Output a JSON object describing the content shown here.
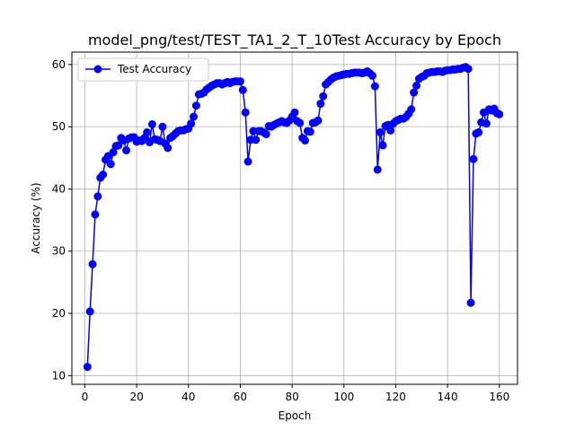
{
  "chart_data": {
    "type": "line",
    "title": "model_png/test/TEST_TA1_2_T_10Test Accuracy by Epoch",
    "xlabel": "Epoch",
    "ylabel": "Accuracy (%)",
    "xlim": [
      -5,
      167
    ],
    "ylim": [
      8.6,
      62
    ],
    "xticks": [
      0,
      20,
      40,
      60,
      80,
      100,
      120,
      140,
      160
    ],
    "yticks": [
      10,
      20,
      30,
      40,
      50,
      60
    ],
    "grid": true,
    "legend_position": "top-left",
    "colors": {
      "series": "#0000ff"
    },
    "series": [
      {
        "name": "Test Accuracy",
        "x": [
          1,
          2,
          3,
          4,
          5,
          6,
          7,
          8,
          9,
          10,
          11,
          12,
          13,
          14,
          15,
          16,
          17,
          18,
          19,
          20,
          21,
          22,
          23,
          24,
          25,
          26,
          27,
          28,
          29,
          30,
          31,
          32,
          33,
          34,
          35,
          36,
          37,
          38,
          39,
          40,
          41,
          42,
          43,
          44,
          45,
          46,
          47,
          48,
          49,
          50,
          51,
          52,
          53,
          54,
          55,
          56,
          57,
          58,
          59,
          60,
          61,
          62,
          63,
          64,
          65,
          66,
          67,
          68,
          69,
          70,
          71,
          72,
          73,
          74,
          75,
          76,
          77,
          78,
          79,
          80,
          81,
          82,
          83,
          84,
          85,
          86,
          87,
          88,
          89,
          90,
          91,
          92,
          93,
          94,
          95,
          96,
          97,
          98,
          99,
          100,
          101,
          102,
          103,
          104,
          105,
          106,
          107,
          108,
          109,
          110,
          111,
          112,
          113,
          114,
          115,
          116,
          117,
          118,
          119,
          120,
          121,
          122,
          123,
          124,
          125,
          126,
          127,
          128,
          129,
          130,
          131,
          132,
          133,
          134,
          135,
          136,
          137,
          138,
          139,
          140,
          141,
          142,
          143,
          144,
          145,
          146,
          147,
          148,
          149,
          150,
          151,
          152,
          153,
          154,
          155,
          156,
          157,
          158,
          159,
          160
        ],
        "values": [
          11.4,
          20.3,
          27.9,
          35.9,
          38.8,
          41.8,
          42.3,
          44.7,
          45.3,
          44.0,
          45.9,
          46.9,
          47.0,
          48.2,
          47.8,
          46.2,
          48.1,
          48.3,
          48.3,
          47.6,
          47.8,
          47.7,
          48.2,
          49.1,
          47.5,
          50.4,
          48.0,
          47.9,
          47.7,
          50.0,
          47.3,
          46.6,
          48.2,
          48.5,
          48.9,
          49.3,
          49.4,
          49.4,
          49.6,
          49.7,
          50.5,
          51.6,
          53.4,
          55.2,
          55.3,
          55.5,
          56.0,
          56.3,
          56.6,
          56.8,
          57.0,
          57.0,
          56.8,
          57.0,
          57.2,
          57.0,
          57.2,
          57.3,
          57.3,
          57.3,
          55.9,
          52.3,
          44.4,
          47.9,
          49.3,
          47.9,
          49.3,
          49.3,
          49.1,
          48.8,
          50.1,
          50.0,
          50.3,
          50.5,
          50.7,
          50.9,
          50.7,
          50.6,
          51.0,
          51.6,
          52.3,
          50.9,
          50.6,
          48.2,
          47.8,
          49.3,
          49.2,
          50.6,
          50.7,
          51.0,
          53.7,
          54.9,
          56.8,
          57.2,
          57.6,
          57.9,
          58.1,
          58.2,
          58.3,
          58.4,
          58.5,
          58.5,
          58.6,
          58.7,
          58.7,
          58.7,
          58.6,
          58.7,
          58.9,
          58.6,
          58.2,
          56.5,
          43.1,
          49.1,
          47.0,
          50.1,
          50.3,
          49.4,
          50.5,
          50.9,
          51.1,
          51.3,
          51.3,
          51.6,
          52.1,
          52.8,
          55.5,
          56.6,
          57.7,
          58.0,
          58.2,
          58.6,
          58.7,
          58.8,
          58.8,
          58.9,
          58.9,
          58.8,
          59.0,
          59.1,
          59.1,
          59.2,
          59.2,
          59.3,
          59.3,
          59.5,
          59.6,
          59.3,
          21.7,
          44.8,
          48.9,
          49.1,
          50.7,
          52.3,
          50.5,
          52.8,
          52.6,
          52.9,
          52.2,
          52.0
        ]
      }
    ]
  }
}
